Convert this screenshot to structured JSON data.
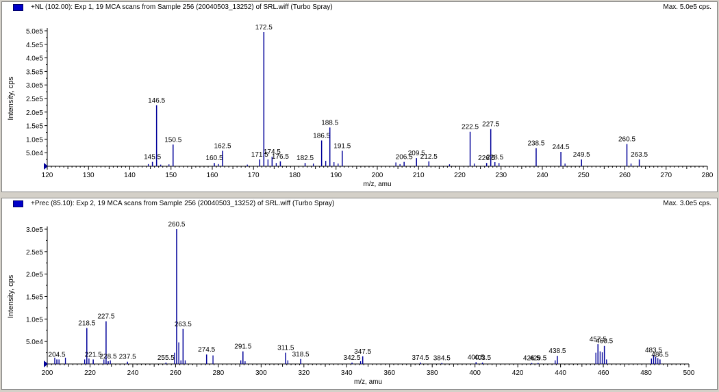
{
  "chart_data": [
    {
      "type": "bar",
      "title": "+NL (102.00): Exp 1, 19 MCA scans from Sample 256 (20040503_13252) of SRL.wiff (Turbo Spray)",
      "max_label": "Max. 5.0e5 cps.",
      "xlabel": "m/z, amu",
      "ylabel": "Intensity, cps",
      "xlim": [
        120,
        280
      ],
      "ylim": [
        0,
        500000
      ],
      "x_ticks": [
        120,
        130,
        140,
        150,
        160,
        170,
        180,
        190,
        200,
        210,
        220,
        230,
        240,
        250,
        260,
        270,
        280
      ],
      "y_ticks": [
        {
          "value": 50000,
          "label": "5.0e4"
        },
        {
          "value": 100000,
          "label": "1.0e5"
        },
        {
          "value": 150000,
          "label": "1.5e5"
        },
        {
          "value": 200000,
          "label": "2.0e5"
        },
        {
          "value": 250000,
          "label": "2.5e5"
        },
        {
          "value": 300000,
          "label": "3.0e5"
        },
        {
          "value": 350000,
          "label": "3.5e5"
        },
        {
          "value": 400000,
          "label": "4.0e5"
        },
        {
          "value": 450000,
          "label": "4.5e5"
        },
        {
          "value": 500000,
          "label": "5.0e5"
        }
      ],
      "color": "#000099",
      "peaks": [
        {
          "x": 145.5,
          "y": 16000,
          "label": "145.5"
        },
        {
          "x": 146.5,
          "y": 225000,
          "label": "146.5"
        },
        {
          "x": 150.5,
          "y": 80000,
          "label": "150.5"
        },
        {
          "x": 160.5,
          "y": 12000,
          "label": "160.5"
        },
        {
          "x": 162.5,
          "y": 57000,
          "label": "162.5"
        },
        {
          "x": 171.5,
          "y": 25000,
          "label": "171.5"
        },
        {
          "x": 172.5,
          "y": 495000,
          "label": "172.5"
        },
        {
          "x": 174.5,
          "y": 35000,
          "label": "174.5"
        },
        {
          "x": 176.5,
          "y": 18000,
          "label": "176.5"
        },
        {
          "x": 182.5,
          "y": 12000,
          "label": "182.5"
        },
        {
          "x": 186.5,
          "y": 95000,
          "label": "186.5"
        },
        {
          "x": 188.5,
          "y": 143000,
          "label": "188.5"
        },
        {
          "x": 191.5,
          "y": 57000,
          "label": "191.5"
        },
        {
          "x": 206.5,
          "y": 16000,
          "label": "206.5"
        },
        {
          "x": 209.5,
          "y": 30000,
          "label": "209.5"
        },
        {
          "x": 212.5,
          "y": 18000,
          "label": "212.5"
        },
        {
          "x": 222.5,
          "y": 127000,
          "label": "222.5"
        },
        {
          "x": 226.5,
          "y": 12000,
          "label": "226.5"
        },
        {
          "x": 227.5,
          "y": 137000,
          "label": "227.5"
        },
        {
          "x": 228.5,
          "y": 15000,
          "label": "228.5"
        },
        {
          "x": 238.5,
          "y": 67000,
          "label": "238.5"
        },
        {
          "x": 244.5,
          "y": 53000,
          "label": "244.5"
        },
        {
          "x": 249.5,
          "y": 25000,
          "label": "249.5"
        },
        {
          "x": 260.5,
          "y": 82000,
          "label": "260.5"
        },
        {
          "x": 263.5,
          "y": 25000,
          "label": "263.5"
        }
      ],
      "minor_peaks": [
        {
          "x": 144.5,
          "y": 8000
        },
        {
          "x": 147.5,
          "y": 6000
        },
        {
          "x": 149.5,
          "y": 7000
        },
        {
          "x": 161.5,
          "y": 8000
        },
        {
          "x": 168.5,
          "y": 6000
        },
        {
          "x": 173.5,
          "y": 25000
        },
        {
          "x": 175.5,
          "y": 12000
        },
        {
          "x": 184.5,
          "y": 10000
        },
        {
          "x": 187.5,
          "y": 20000
        },
        {
          "x": 189.5,
          "y": 15000
        },
        {
          "x": 190.5,
          "y": 10000
        },
        {
          "x": 204.5,
          "y": 14000
        },
        {
          "x": 205.5,
          "y": 8000
        },
        {
          "x": 217.5,
          "y": 7000
        },
        {
          "x": 223.5,
          "y": 10000
        },
        {
          "x": 229.5,
          "y": 12000
        },
        {
          "x": 245.5,
          "y": 10000
        },
        {
          "x": 261.5,
          "y": 10000
        }
      ]
    },
    {
      "type": "bar",
      "title": "+Prec (85.10): Exp 2, 19 MCA scans from Sample 256 (20040503_13252) of SRL.wiff (Turbo Spray)",
      "max_label": "Max. 3.0e5 cps.",
      "xlabel": "m/z, amu",
      "ylabel": "Intensity, cps",
      "xlim": [
        200,
        500
      ],
      "ylim": [
        0,
        300000
      ],
      "x_ticks": [
        200,
        220,
        240,
        260,
        280,
        300,
        320,
        340,
        360,
        380,
        400,
        420,
        440,
        460,
        480,
        500
      ],
      "y_ticks": [
        {
          "value": 50000,
          "label": "5.0e4"
        },
        {
          "value": 100000,
          "label": "1.0e5"
        },
        {
          "value": 150000,
          "label": "1.5e5"
        },
        {
          "value": 200000,
          "label": "2.0e5"
        },
        {
          "value": 250000,
          "label": "2.5e5"
        },
        {
          "value": 300000,
          "label": "3.0e5"
        }
      ],
      "color": "#000099",
      "peaks": [
        {
          "x": 204.5,
          "y": 10000,
          "label": "204.5"
        },
        {
          "x": 218.5,
          "y": 80000,
          "label": "218.5"
        },
        {
          "x": 221.5,
          "y": 10000,
          "label": "221.5"
        },
        {
          "x": 227.5,
          "y": 95000,
          "label": "227.5"
        },
        {
          "x": 228.5,
          "y": 6000,
          "label": "228.5"
        },
        {
          "x": 237.5,
          "y": 5000,
          "label": "237.5"
        },
        {
          "x": 255.5,
          "y": 3000,
          "label": "255.5"
        },
        {
          "x": 260.5,
          "y": 300000,
          "label": "260.5"
        },
        {
          "x": 263.5,
          "y": 78000,
          "label": "263.5"
        },
        {
          "x": 274.5,
          "y": 21000,
          "label": "274.5"
        },
        {
          "x": 291.5,
          "y": 28000,
          "label": "291.5"
        },
        {
          "x": 311.5,
          "y": 25000,
          "label": "311.5"
        },
        {
          "x": 318.5,
          "y": 11000,
          "label": "318.5"
        },
        {
          "x": 342.5,
          "y": 3000,
          "label": "342.5"
        },
        {
          "x": 347.5,
          "y": 17000,
          "label": "347.5"
        },
        {
          "x": 374.5,
          "y": 3000,
          "label": "374.5"
        },
        {
          "x": 384.5,
          "y": 2000,
          "label": "384.5"
        },
        {
          "x": 400.5,
          "y": 4000,
          "label": "400.5"
        },
        {
          "x": 403.5,
          "y": 3000,
          "label": "403.5"
        },
        {
          "x": 426.5,
          "y": 2000,
          "label": "426.5"
        },
        {
          "x": 429.5,
          "y": 2000,
          "label": "429.5"
        },
        {
          "x": 438.5,
          "y": 18000,
          "label": "438.5"
        },
        {
          "x": 457.5,
          "y": 44000,
          "label": "457.5"
        },
        {
          "x": 460.5,
          "y": 40000,
          "label": "460.5"
        },
        {
          "x": 483.5,
          "y": 20000,
          "label": "483.5"
        },
        {
          "x": 486.5,
          "y": 10000,
          "label": "486.5"
        }
      ],
      "minor_peaks": [
        {
          "x": 203.5,
          "y": 14000
        },
        {
          "x": 205.5,
          "y": 10000
        },
        {
          "x": 208.5,
          "y": 14000
        },
        {
          "x": 217.5,
          "y": 10000
        },
        {
          "x": 219.5,
          "y": 12000
        },
        {
          "x": 226.5,
          "y": 10000
        },
        {
          "x": 229.5,
          "y": 8000
        },
        {
          "x": 259.5,
          "y": 25000
        },
        {
          "x": 261.5,
          "y": 48000
        },
        {
          "x": 262.5,
          "y": 8000
        },
        {
          "x": 264.5,
          "y": 8000
        },
        {
          "x": 277.5,
          "y": 19000
        },
        {
          "x": 290.5,
          "y": 8000
        },
        {
          "x": 292.5,
          "y": 6000
        },
        {
          "x": 312.5,
          "y": 8000
        },
        {
          "x": 346.5,
          "y": 6000
        },
        {
          "x": 437.5,
          "y": 8000
        },
        {
          "x": 456.5,
          "y": 25000
        },
        {
          "x": 458.5,
          "y": 28000
        },
        {
          "x": 459.5,
          "y": 26000
        },
        {
          "x": 461.5,
          "y": 10000
        },
        {
          "x": 482.5,
          "y": 12000
        },
        {
          "x": 484.5,
          "y": 16000
        },
        {
          "x": 485.5,
          "y": 13000
        }
      ]
    }
  ]
}
